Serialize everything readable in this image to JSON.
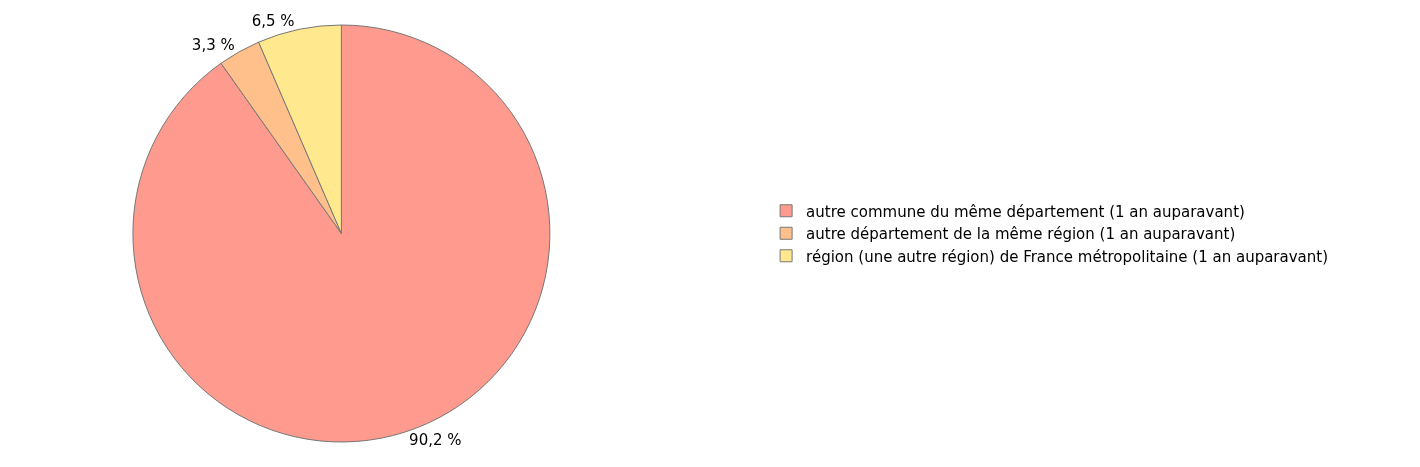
{
  "chart_data": {
    "type": "pie",
    "categories": [
      "autre commune du même département (1 an auparavant)",
      "autre département de la même région (1 an auparavant)",
      "région (une autre région) de France métropolitaine (1 an auparavant)"
    ],
    "values": [
      90.2,
      3.3,
      6.5
    ],
    "colors": [
      "#ff9a8e",
      "#ffc08c",
      "#ffe88e"
    ],
    "value_labels": [
      "90,2 %",
      "3,3 %",
      "6,5 %"
    ],
    "legend": "right"
  }
}
